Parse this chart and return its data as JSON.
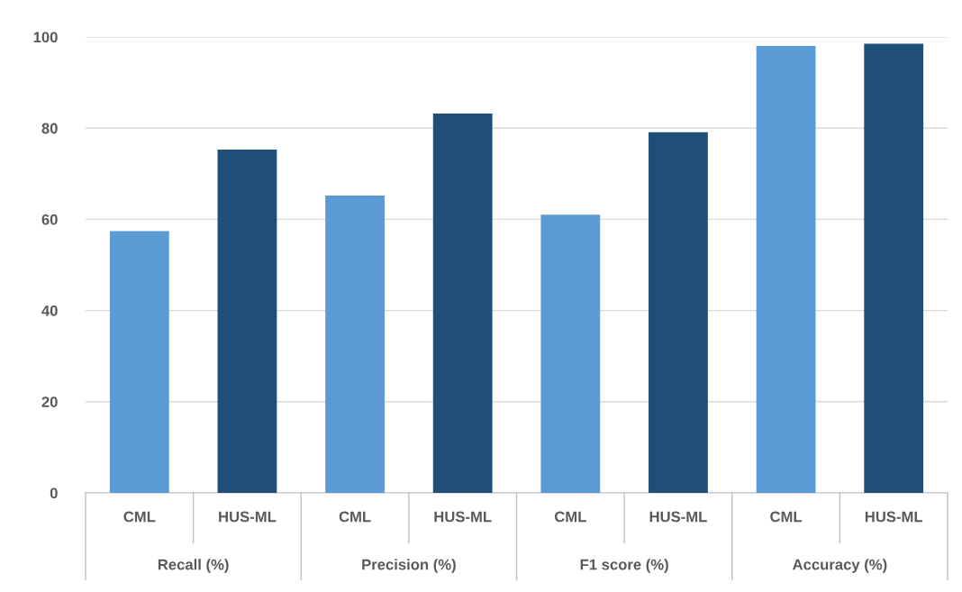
{
  "chart_data": {
    "type": "bar",
    "categories": [
      "Recall (%)",
      "Precision (%)",
      "F1 score (%)",
      "Accuracy (%)"
    ],
    "series": [
      {
        "name": "CML",
        "color": "#5b9bd5",
        "values": [
          57.4,
          65.2,
          61.0,
          98.0
        ]
      },
      {
        "name": "HUS-ML",
        "color": "#1f4e79",
        "values": [
          75.3,
          83.2,
          79.1,
          98.5
        ]
      }
    ],
    "ylim": [
      0,
      100
    ],
    "yticks": [
      0,
      20,
      40,
      60,
      80,
      100
    ],
    "grid": "y",
    "legend": false
  }
}
